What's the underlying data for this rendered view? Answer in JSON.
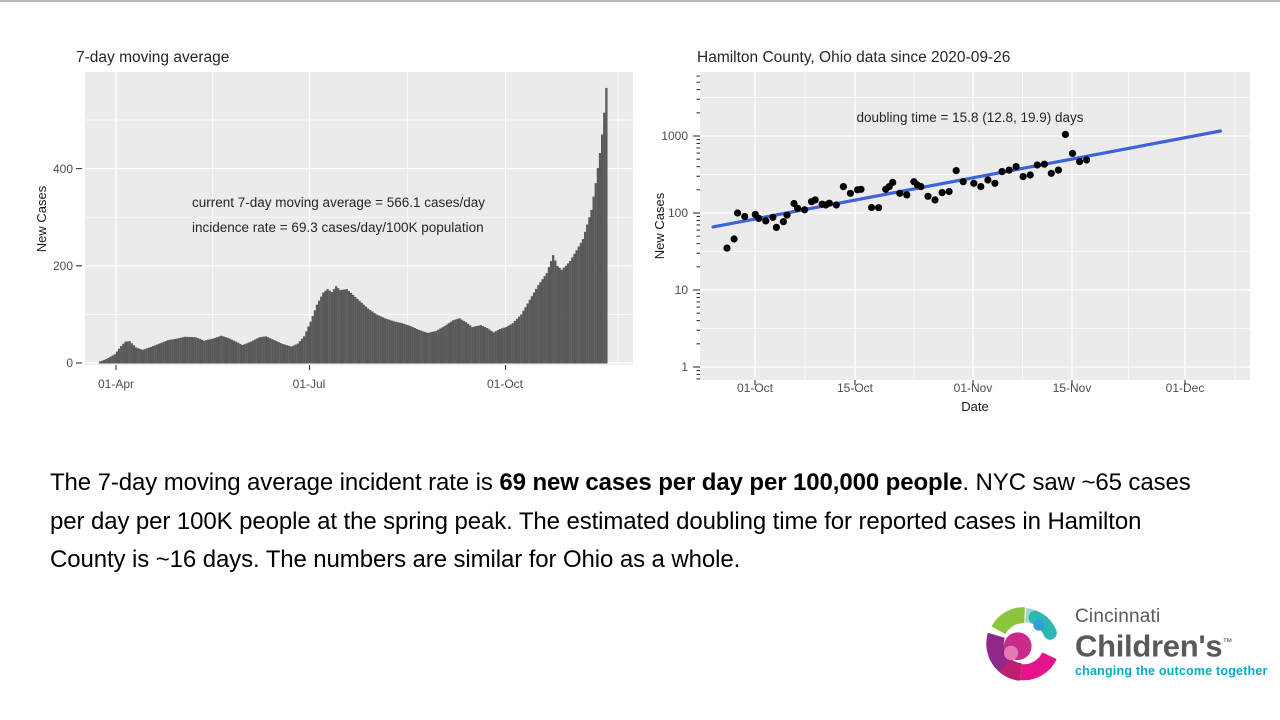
{
  "chart_data": [
    {
      "type": "bar",
      "title": "7-day moving average",
      "xlabel": "",
      "ylabel": "New Cases",
      "x_tick_labels": [
        "01-Apr",
        "01-Jul",
        "01-Oct"
      ],
      "y_tick_labels": [
        "0",
        "200",
        "400"
      ],
      "y_ticks": [
        0,
        200,
        400
      ],
      "ylim": [
        0,
        598
      ],
      "date_range": [
        "2020-03-25",
        "2020-11-18"
      ],
      "annotation_line1": "current 7-day moving average = 566.1 cases/day",
      "annotation_line2": "incidence rate = 69.3 cases/day/100K population",
      "bar_color": "#595959",
      "panel_color": "#ebebeb",
      "series_control_points": [
        [
          0,
          3
        ],
        [
          3,
          8
        ],
        [
          7,
          18
        ],
        [
          10,
          35
        ],
        [
          12,
          44
        ],
        [
          14,
          45
        ],
        [
          17,
          32
        ],
        [
          20,
          27
        ],
        [
          24,
          33
        ],
        [
          28,
          40
        ],
        [
          32,
          47
        ],
        [
          36,
          50
        ],
        [
          40,
          54
        ],
        [
          45,
          53
        ],
        [
          49,
          46
        ],
        [
          53,
          50
        ],
        [
          57,
          56
        ],
        [
          60,
          52
        ],
        [
          64,
          44
        ],
        [
          67,
          37
        ],
        [
          71,
          44
        ],
        [
          75,
          53
        ],
        [
          78,
          55
        ],
        [
          82,
          47
        ],
        [
          86,
          39
        ],
        [
          90,
          34
        ],
        [
          93,
          40
        ],
        [
          96,
          55
        ],
        [
          99,
          85
        ],
        [
          102,
          120
        ],
        [
          105,
          145
        ],
        [
          107,
          152
        ],
        [
          109,
          146
        ],
        [
          111,
          158
        ],
        [
          113,
          150
        ],
        [
          116,
          152
        ],
        [
          119,
          140
        ],
        [
          122,
          128
        ],
        [
          126,
          112
        ],
        [
          130,
          100
        ],
        [
          134,
          92
        ],
        [
          138,
          86
        ],
        [
          142,
          82
        ],
        [
          146,
          76
        ],
        [
          150,
          68
        ],
        [
          154,
          62
        ],
        [
          158,
          66
        ],
        [
          162,
          76
        ],
        [
          166,
          88
        ],
        [
          169,
          92
        ],
        [
          172,
          84
        ],
        [
          175,
          74
        ],
        [
          179,
          78
        ],
        [
          182,
          72
        ],
        [
          185,
          63
        ],
        [
          188,
          70
        ],
        [
          191,
          74
        ],
        [
          194,
          82
        ],
        [
          198,
          100
        ],
        [
          202,
          130
        ],
        [
          206,
          160
        ],
        [
          210,
          185
        ],
        [
          213,
          222
        ],
        [
          215,
          200
        ],
        [
          217,
          192
        ],
        [
          219,
          200
        ],
        [
          221,
          210
        ],
        [
          224,
          232
        ],
        [
          227,
          255
        ],
        [
          229,
          285
        ],
        [
          231,
          315
        ],
        [
          233,
          370
        ],
        [
          235,
          432
        ],
        [
          236,
          470
        ],
        [
          237,
          515
        ],
        [
          238,
          566
        ]
      ]
    },
    {
      "type": "scatter",
      "title": "Hamilton County, Ohio data since 2020-09-26",
      "xlabel": "Date",
      "ylabel": "New Cases",
      "y_scale": "log10",
      "y_tick_labels": [
        "1000",
        "100",
        "10",
        "1"
      ],
      "y_ticks": [
        1000,
        100,
        10,
        1
      ],
      "x_tick_labels": [
        "01-Oct",
        "15-Oct",
        "01-Nov",
        "15-Nov",
        "01-Dec"
      ],
      "annotation": "doubling time = 15.8 (12.8, 19.9) days",
      "point_color": "#000000",
      "line_color": "#3E62D9",
      "panel_color": "#ebebeb",
      "points_day_value": [
        [
          1,
          35
        ],
        [
          2,
          46
        ],
        [
          2.5,
          100
        ],
        [
          3.5,
          90
        ],
        [
          5,
          96
        ],
        [
          5.5,
          85
        ],
        [
          6.5,
          79
        ],
        [
          7.5,
          88
        ],
        [
          8,
          65
        ],
        [
          9,
          77
        ],
        [
          9.5,
          94
        ],
        [
          10.5,
          133
        ],
        [
          11,
          115
        ],
        [
          12,
          110
        ],
        [
          13,
          140
        ],
        [
          13.5,
          148
        ],
        [
          14.5,
          130
        ],
        [
          15,
          127
        ],
        [
          15.5,
          134
        ],
        [
          16.5,
          127
        ],
        [
          17.5,
          220
        ],
        [
          18.5,
          180
        ],
        [
          19.5,
          200
        ],
        [
          20,
          203
        ],
        [
          21.5,
          118
        ],
        [
          22.5,
          117
        ],
        [
          23.5,
          203
        ],
        [
          24,
          220
        ],
        [
          24.5,
          250
        ],
        [
          25.5,
          180
        ],
        [
          26.5,
          172
        ],
        [
          27.5,
          255
        ],
        [
          28,
          231
        ],
        [
          28.5,
          220
        ],
        [
          29.5,
          165
        ],
        [
          30.5,
          148
        ],
        [
          31.5,
          184
        ],
        [
          32.5,
          190
        ],
        [
          33.5,
          355
        ],
        [
          34.5,
          255
        ],
        [
          36,
          243
        ],
        [
          37,
          220
        ],
        [
          38,
          268
        ],
        [
          39,
          243
        ],
        [
          40,
          345
        ],
        [
          41,
          361
        ],
        [
          42,
          400
        ],
        [
          43,
          297
        ],
        [
          44,
          312
        ],
        [
          45,
          420
        ],
        [
          46,
          430
        ],
        [
          47,
          328
        ],
        [
          48,
          361
        ],
        [
          49,
          1050
        ],
        [
          50,
          595
        ],
        [
          51,
          465
        ],
        [
          52,
          488
        ]
      ],
      "trend_line": {
        "start_day": -1,
        "start_value": 66,
        "end_day": 71,
        "end_value": 1160
      }
    }
  ],
  "paragraph": {
    "segments": [
      {
        "text": "The 7-day moving average incident rate is ",
        "bold": false
      },
      {
        "text": "69 new cases per day per 100,000 people",
        "bold": true
      },
      {
        "text": ". NYC saw ~65 cases per day per 100K people at the spring peak. The estimated doubling time for reported cases in Hamilton County is ~16 days. The numbers are similar for Ohio as a whole.",
        "bold": false
      }
    ]
  },
  "logo": {
    "name_line1": "Cincinnati",
    "name_line2": "Children's",
    "trademark": "™",
    "tagline": "changing the outcome together",
    "text_color": "#58595B",
    "tagline_color": "#00AEC7",
    "mark_colors": {
      "green": "#8CC63E",
      "pale_teal": "#A5D6CB",
      "teal": "#2CB6B4",
      "blue": "#2E9FDA",
      "magenta": "#E6148C",
      "crimson": "#C01F70",
      "plum": "#8F2888",
      "inner_magenta": "#C92A8C",
      "pink": "#E27BB4"
    }
  }
}
